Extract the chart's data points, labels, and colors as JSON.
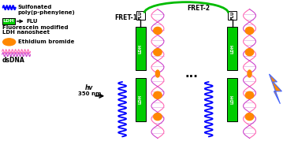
{
  "bg_color": "#ffffff",
  "wavy_color_blue": "#0000ff",
  "wavy_color_pink": "#ff69b4",
  "wavy_color_pink2": "#cc44cc",
  "ldh_green": "#00cc00",
  "ethidium_orange": "#ff8800",
  "fret1_label": "FRET-1",
  "fret2_label": "FRET-2",
  "flu_label": "FLU",
  "hv_label": "hv\n350 nm",
  "dots_label": "...",
  "title1": "Sulfonated",
  "title2": "poly(p-phenylene)",
  "title3": "Fluorescein modified",
  "title4": "LDH nanosheet",
  "title5": "Ethidium bromide",
  "title6": "dsDNA",
  "ldh_box_label": "LDH",
  "flu_box_label": "FLU",
  "lightning_orange": "#ff8800",
  "lightning_blue": "#4466ff",
  "green_arc": "#00bb00",
  "arrow_color": "#000000"
}
